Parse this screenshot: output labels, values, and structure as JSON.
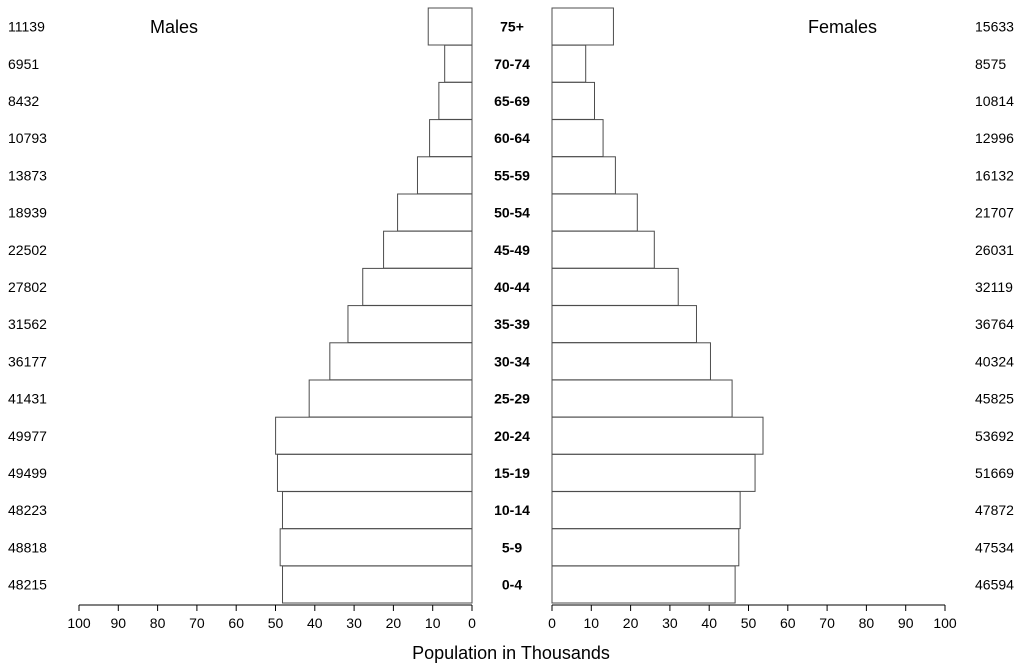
{
  "chart_data": {
    "type": "bar",
    "orientation": "population-pyramid",
    "xlabel": "Population in Thousands",
    "xlim": [
      0,
      100
    ],
    "ticks": [
      0,
      10,
      20,
      30,
      40,
      50,
      60,
      70,
      80,
      90,
      100
    ],
    "categories": [
      "75+",
      "70-74",
      "65-69",
      "60-64",
      "55-59",
      "50-54",
      "45-49",
      "40-44",
      "35-39",
      "30-34",
      "25-29",
      "20-24",
      "15-19",
      "10-14",
      "5-9",
      "0-4"
    ],
    "series": [
      {
        "name": "Males",
        "side": "left",
        "values": [
          11139,
          6951,
          8432,
          10793,
          13873,
          18939,
          22502,
          27802,
          31562,
          36177,
          41431,
          49977,
          49499,
          48223,
          48818,
          48215
        ]
      },
      {
        "name": "Females",
        "side": "right",
        "values": [
          15633,
          8575,
          10814,
          12996,
          16132,
          21707,
          26031,
          32119,
          36764,
          40324,
          45825,
          53692,
          51669,
          47872,
          47534,
          46594
        ]
      }
    ],
    "bar_fill": "#ffffff",
    "bar_stroke": "#4d4d4d"
  }
}
